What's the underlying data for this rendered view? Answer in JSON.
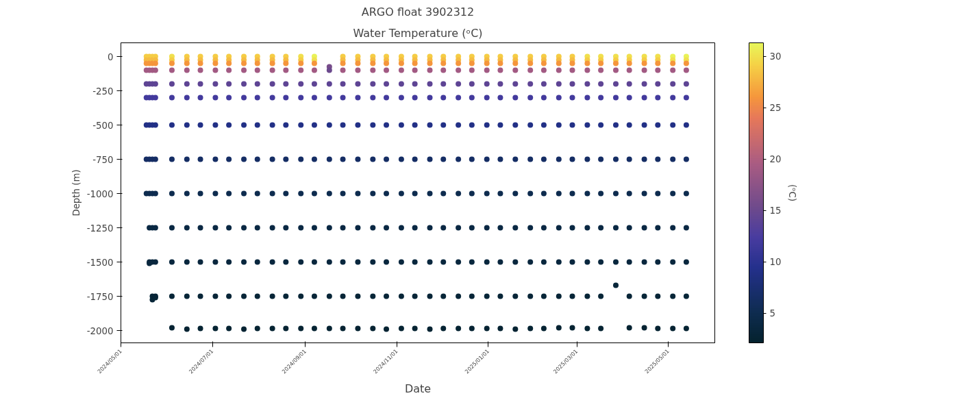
{
  "chart_data": {
    "type": "scatter",
    "title": "ARGO float 3902312",
    "subtitle": "Water Temperature (ᵒC)",
    "xlabel": "Date",
    "ylabel": "Depth (m)",
    "clabel": "(ᵒC)",
    "marker": "circle",
    "xlim": [
      "2024-05-01",
      "2025-06-01"
    ],
    "ylim": [
      -2090,
      100
    ],
    "xticks": [
      {
        "value": "2024-05-01",
        "label": "2024/05/01"
      },
      {
        "value": "2024-07-01",
        "label": "2024/07/01"
      },
      {
        "value": "2024-09-01",
        "label": "2024/09/01"
      },
      {
        "value": "2024-11-01",
        "label": "2024/11/01"
      },
      {
        "value": "2025-01-01",
        "label": "2025/01/01"
      },
      {
        "value": "2025-03-01",
        "label": "2025/03/01"
      },
      {
        "value": "2025-05-01",
        "label": "2025/05/01"
      }
    ],
    "yticks": [
      0,
      -250,
      -500,
      -750,
      -1000,
      -1250,
      -1500,
      -1750,
      -2000
    ],
    "clim": [
      2.1,
      31.3
    ],
    "cticks": [
      5,
      10,
      15,
      20,
      25,
      30
    ],
    "x": [
      "2024-05-18",
      "2024-05-18",
      "2024-05-18",
      "2024-05-18",
      "2024-05-18",
      "2024-05-18",
      "2024-05-18",
      "2024-05-18",
      "2024-05-18",
      "2024-05-20",
      "2024-05-20",
      "2024-05-20",
      "2024-05-20",
      "2024-05-20",
      "2024-05-20",
      "2024-05-20",
      "2024-05-20",
      "2024-05-20",
      "2024-05-20",
      "2024-05-20",
      "2024-05-20",
      "2024-05-22",
      "2024-05-22",
      "2024-05-22",
      "2024-05-22",
      "2024-05-22",
      "2024-05-22",
      "2024-05-22",
      "2024-05-22",
      "2024-05-22",
      "2024-05-22",
      "2024-05-22",
      "2024-05-22",
      "2024-05-22",
      "2024-05-24",
      "2024-05-24",
      "2024-05-24",
      "2024-05-24",
      "2024-05-24",
      "2024-05-24",
      "2024-05-24",
      "2024-05-24",
      "2024-05-24",
      "2024-05-24",
      "2024-05-24",
      "2024-05-24",
      "2024-05-24",
      "2024-06-04",
      "2024-06-04",
      "2024-06-04",
      "2024-06-04",
      "2024-06-04",
      "2024-06-04",
      "2024-06-04",
      "2024-06-04",
      "2024-06-04",
      "2024-06-04",
      "2024-06-04",
      "2024-06-04",
      "2024-06-04",
      "2024-06-14",
      "2024-06-14",
      "2024-06-14",
      "2024-06-14",
      "2024-06-14",
      "2024-06-14",
      "2024-06-14",
      "2024-06-14",
      "2024-06-14",
      "2024-06-14",
      "2024-06-14",
      "2024-06-14",
      "2024-06-14",
      "2024-06-23",
      "2024-06-23",
      "2024-06-23",
      "2024-06-23",
      "2024-06-23",
      "2024-06-23",
      "2024-06-23",
      "2024-06-23",
      "2024-06-23",
      "2024-06-23",
      "2024-06-23",
      "2024-06-23",
      "2024-06-23",
      "2024-07-03",
      "2024-07-03",
      "2024-07-03",
      "2024-07-03",
      "2024-07-03",
      "2024-07-03",
      "2024-07-03",
      "2024-07-03",
      "2024-07-03",
      "2024-07-03",
      "2024-07-03",
      "2024-07-03",
      "2024-07-03",
      "2024-07-12",
      "2024-07-12",
      "2024-07-12",
      "2024-07-12",
      "2024-07-12",
      "2024-07-12",
      "2024-07-12",
      "2024-07-12",
      "2024-07-12",
      "2024-07-12",
      "2024-07-12",
      "2024-07-12",
      "2024-07-12",
      "2024-07-22",
      "2024-07-22",
      "2024-07-22",
      "2024-07-22",
      "2024-07-22",
      "2024-07-22",
      "2024-07-22",
      "2024-07-22",
      "2024-07-22",
      "2024-07-22",
      "2024-07-22",
      "2024-07-22",
      "2024-07-22",
      "2024-07-31",
      "2024-07-31",
      "2024-07-31",
      "2024-07-31",
      "2024-07-31",
      "2024-07-31",
      "2024-07-31",
      "2024-07-31",
      "2024-07-31",
      "2024-07-31",
      "2024-07-31",
      "2024-07-31",
      "2024-07-31",
      "2024-08-10",
      "2024-08-10",
      "2024-08-10",
      "2024-08-10",
      "2024-08-10",
      "2024-08-10",
      "2024-08-10",
      "2024-08-10",
      "2024-08-10",
      "2024-08-10",
      "2024-08-10",
      "2024-08-10",
      "2024-08-10",
      "2024-08-19",
      "2024-08-19",
      "2024-08-19",
      "2024-08-19",
      "2024-08-19",
      "2024-08-19",
      "2024-08-19",
      "2024-08-19",
      "2024-08-19",
      "2024-08-19",
      "2024-08-19",
      "2024-08-19",
      "2024-08-19",
      "2024-08-29",
      "2024-08-29",
      "2024-08-29",
      "2024-08-29",
      "2024-08-29",
      "2024-08-29",
      "2024-08-29",
      "2024-08-29",
      "2024-08-29",
      "2024-08-29",
      "2024-08-29",
      "2024-08-29",
      "2024-08-29",
      "2024-09-07",
      "2024-09-07",
      "2024-09-07",
      "2024-09-07",
      "2024-09-07",
      "2024-09-07",
      "2024-09-07",
      "2024-09-07",
      "2024-09-07",
      "2024-09-07",
      "2024-09-07",
      "2024-09-07",
      "2024-09-07",
      "2024-09-17",
      "2024-09-17",
      "2024-09-17",
      "2024-09-17",
      "2024-09-17",
      "2024-09-17",
      "2024-09-17",
      "2024-09-17",
      "2024-09-17",
      "2024-09-17",
      "2024-09-17",
      "2024-09-26",
      "2024-09-26",
      "2024-09-26",
      "2024-09-26",
      "2024-09-26",
      "2024-09-26",
      "2024-09-26",
      "2024-09-26",
      "2024-09-26",
      "2024-09-26",
      "2024-09-26",
      "2024-09-26",
      "2024-09-26",
      "2024-10-06",
      "2024-10-06",
      "2024-10-06",
      "2024-10-06",
      "2024-10-06",
      "2024-10-06",
      "2024-10-06",
      "2024-10-06",
      "2024-10-06",
      "2024-10-06",
      "2024-10-06",
      "2024-10-06",
      "2024-10-06",
      "2024-10-16",
      "2024-10-16",
      "2024-10-16",
      "2024-10-16",
      "2024-10-16",
      "2024-10-16",
      "2024-10-16",
      "2024-10-16",
      "2024-10-16",
      "2024-10-16",
      "2024-10-16",
      "2024-10-16",
      "2024-10-16",
      "2024-10-25",
      "2024-10-25",
      "2024-10-25",
      "2024-10-25",
      "2024-10-25",
      "2024-10-25",
      "2024-10-25",
      "2024-10-25",
      "2024-10-25",
      "2024-10-25",
      "2024-10-25",
      "2024-10-25",
      "2024-10-25",
      "2024-11-04",
      "2024-11-04",
      "2024-11-04",
      "2024-11-04",
      "2024-11-04",
      "2024-11-04",
      "2024-11-04",
      "2024-11-04",
      "2024-11-04",
      "2024-11-04",
      "2024-11-04",
      "2024-11-04",
      "2024-11-04",
      "2024-11-13",
      "2024-11-13",
      "2024-11-13",
      "2024-11-13",
      "2024-11-13",
      "2024-11-13",
      "2024-11-13",
      "2024-11-13",
      "2024-11-13",
      "2024-11-13",
      "2024-11-13",
      "2024-11-13",
      "2024-11-13",
      "2024-11-23",
      "2024-11-23",
      "2024-11-23",
      "2024-11-23",
      "2024-11-23",
      "2024-11-23",
      "2024-11-23",
      "2024-11-23",
      "2024-11-23",
      "2024-11-23",
      "2024-11-23",
      "2024-11-23",
      "2024-11-23",
      "2024-12-02",
      "2024-12-02",
      "2024-12-02",
      "2024-12-02",
      "2024-12-02",
      "2024-12-02",
      "2024-12-02",
      "2024-12-02",
      "2024-12-02",
      "2024-12-02",
      "2024-12-02",
      "2024-12-02",
      "2024-12-02",
      "2024-12-12",
      "2024-12-12",
      "2024-12-12",
      "2024-12-12",
      "2024-12-12",
      "2024-12-12",
      "2024-12-12",
      "2024-12-12",
      "2024-12-12",
      "2024-12-12",
      "2024-12-12",
      "2024-12-12",
      "2024-12-12",
      "2024-12-21",
      "2024-12-21",
      "2024-12-21",
      "2024-12-21",
      "2024-12-21",
      "2024-12-21",
      "2024-12-21",
      "2024-12-21",
      "2024-12-21",
      "2024-12-21",
      "2024-12-21",
      "2024-12-21",
      "2024-12-21",
      "2024-12-31",
      "2024-12-31",
      "2024-12-31",
      "2024-12-31",
      "2024-12-31",
      "2024-12-31",
      "2024-12-31",
      "2024-12-31",
      "2024-12-31",
      "2024-12-31",
      "2024-12-31",
      "2024-12-31",
      "2024-12-31",
      "2025-01-09",
      "2025-01-09",
      "2025-01-09",
      "2025-01-09",
      "2025-01-09",
      "2025-01-09",
      "2025-01-09",
      "2025-01-09",
      "2025-01-09",
      "2025-01-09",
      "2025-01-09",
      "2025-01-09",
      "2025-01-09",
      "2025-01-19",
      "2025-01-19",
      "2025-01-19",
      "2025-01-19",
      "2025-01-19",
      "2025-01-19",
      "2025-01-19",
      "2025-01-19",
      "2025-01-19",
      "2025-01-19",
      "2025-01-19",
      "2025-01-19",
      "2025-01-19",
      "2025-01-29",
      "2025-01-29",
      "2025-01-29",
      "2025-01-29",
      "2025-01-29",
      "2025-01-29",
      "2025-01-29",
      "2025-01-29",
      "2025-01-29",
      "2025-01-29",
      "2025-01-29",
      "2025-01-29",
      "2025-01-29",
      "2025-02-07",
      "2025-02-07",
      "2025-02-07",
      "2025-02-07",
      "2025-02-07",
      "2025-02-07",
      "2025-02-07",
      "2025-02-07",
      "2025-02-07",
      "2025-02-07",
      "2025-02-07",
      "2025-02-07",
      "2025-02-07",
      "2025-02-17",
      "2025-02-17",
      "2025-02-17",
      "2025-02-17",
      "2025-02-17",
      "2025-02-17",
      "2025-02-17",
      "2025-02-17",
      "2025-02-17",
      "2025-02-17",
      "2025-02-17",
      "2025-02-17",
      "2025-02-17",
      "2025-02-26",
      "2025-02-26",
      "2025-02-26",
      "2025-02-26",
      "2025-02-26",
      "2025-02-26",
      "2025-02-26",
      "2025-02-26",
      "2025-02-26",
      "2025-02-26",
      "2025-02-26",
      "2025-02-26",
      "2025-02-26",
      "2025-03-08",
      "2025-03-08",
      "2025-03-08",
      "2025-03-08",
      "2025-03-08",
      "2025-03-08",
      "2025-03-08",
      "2025-03-08",
      "2025-03-08",
      "2025-03-08",
      "2025-03-08",
      "2025-03-08",
      "2025-03-08",
      "2025-03-17",
      "2025-03-17",
      "2025-03-17",
      "2025-03-17",
      "2025-03-17",
      "2025-03-17",
      "2025-03-17",
      "2025-03-17",
      "2025-03-17",
      "2025-03-17",
      "2025-03-17",
      "2025-03-17",
      "2025-03-17",
      "2025-03-27",
      "2025-03-27",
      "2025-03-27",
      "2025-03-27",
      "2025-03-27",
      "2025-03-27",
      "2025-03-27",
      "2025-03-27",
      "2025-03-27",
      "2025-03-27",
      "2025-03-27",
      "2025-03-27",
      "2025-04-05",
      "2025-04-05",
      "2025-04-05",
      "2025-04-05",
      "2025-04-05",
      "2025-04-05",
      "2025-04-05",
      "2025-04-05",
      "2025-04-05",
      "2025-04-05",
      "2025-04-05",
      "2025-04-05",
      "2025-04-05",
      "2025-04-15",
      "2025-04-15",
      "2025-04-15",
      "2025-04-15",
      "2025-04-15",
      "2025-04-15",
      "2025-04-15",
      "2025-04-15",
      "2025-04-15",
      "2025-04-15",
      "2025-04-15",
      "2025-04-15",
      "2025-04-15",
      "2025-04-24",
      "2025-04-24",
      "2025-04-24",
      "2025-04-24",
      "2025-04-24",
      "2025-04-24",
      "2025-04-24",
      "2025-04-24",
      "2025-04-24",
      "2025-04-24",
      "2025-04-24",
      "2025-04-24",
      "2025-04-24",
      "2025-05-04",
      "2025-05-04",
      "2025-05-04",
      "2025-05-04",
      "2025-05-04",
      "2025-05-04",
      "2025-05-04",
      "2025-05-04",
      "2025-05-04",
      "2025-05-04",
      "2025-05-04",
      "2025-05-04",
      "2025-05-04",
      "2025-05-13",
      "2025-05-13",
      "2025-05-13",
      "2025-05-13",
      "2025-05-13",
      "2025-05-13",
      "2025-05-13",
      "2025-05-13",
      "2025-05-13",
      "2025-05-13",
      "2025-05-13",
      "2025-05-13",
      "2025-05-13"
    ],
    "values": [
      0,
      -25,
      -50,
      -100,
      -200,
      -300,
      -500,
      -750,
      -1000,
      0,
      -25,
      -50,
      -100,
      -200,
      -300,
      -500,
      -750,
      -1000,
      -1250,
      -1500,
      -1510,
      0,
      -25,
      -50,
      -100,
      -200,
      -300,
      -500,
      -750,
      -1000,
      -1250,
      -1500,
      -1750,
      -1775,
      0,
      -25,
      -50,
      -100,
      -200,
      -300,
      -500,
      -750,
      -1000,
      -1250,
      -1500,
      -1750,
      -1760,
      0,
      -25,
      -50,
      -100,
      -200,
      -300,
      -500,
      -750,
      -1000,
      -1250,
      -1500,
      -1750,
      -1980,
      0,
      -25,
      -50,
      -100,
      -200,
      -300,
      -500,
      -750,
      -1000,
      -1250,
      -1500,
      -1750,
      -1990,
      0,
      -25,
      -50,
      -100,
      -200,
      -300,
      -500,
      -750,
      -1000,
      -1250,
      -1500,
      -1750,
      -1985,
      0,
      -25,
      -50,
      -100,
      -200,
      -300,
      -500,
      -750,
      -1000,
      -1250,
      -1500,
      -1750,
      -1985,
      0,
      -25,
      -50,
      -100,
      -200,
      -300,
      -500,
      -750,
      -1000,
      -1250,
      -1500,
      -1750,
      -1985,
      0,
      -25,
      -50,
      -100,
      -200,
      -300,
      -500,
      -750,
      -1000,
      -1250,
      -1500,
      -1750,
      -1990,
      0,
      -25,
      -50,
      -100,
      -200,
      -300,
      -500,
      -750,
      -1000,
      -1250,
      -1500,
      -1750,
      -1985,
      0,
      -25,
      -50,
      -100,
      -200,
      -300,
      -500,
      -750,
      -1000,
      -1250,
      -1500,
      -1750,
      -1985,
      0,
      -25,
      -50,
      -100,
      -200,
      -300,
      -500,
      -750,
      -1000,
      -1250,
      -1500,
      -1750,
      -1985,
      0,
      -25,
      -50,
      -100,
      -200,
      -300,
      -500,
      -750,
      -1000,
      -1250,
      -1500,
      -1750,
      -1985,
      0,
      -25,
      -50,
      -100,
      -200,
      -300,
      -500,
      -750,
      -1000,
      -1250,
      -1500,
      -1750,
      -1985,
      -75,
      -100,
      -200,
      -300,
      -500,
      -750,
      -1000,
      -1250,
      -1500,
      -1750,
      -1985,
      0,
      -25,
      -50,
      -100,
      -200,
      -300,
      -500,
      -750,
      -1000,
      -1250,
      -1500,
      -1750,
      -1985,
      0,
      -25,
      -50,
      -100,
      -200,
      -300,
      -500,
      -750,
      -1000,
      -1250,
      -1500,
      -1750,
      -1985,
      0,
      -25,
      -50,
      -100,
      -200,
      -300,
      -500,
      -750,
      -1000,
      -1250,
      -1500,
      -1750,
      -1985,
      0,
      -25,
      -50,
      -100,
      -200,
      -300,
      -500,
      -750,
      -1000,
      -1250,
      -1500,
      -1750,
      -1990,
      0,
      -25,
      -50,
      -100,
      -200,
      -300,
      -500,
      -750,
      -1000,
      -1250,
      -1500,
      -1750,
      -1985,
      0,
      -25,
      -50,
      -100,
      -200,
      -300,
      -500,
      -750,
      -1000,
      -1250,
      -1500,
      -1750,
      -1985,
      0,
      -25,
      -50,
      -100,
      -200,
      -300,
      -500,
      -750,
      -1000,
      -1250,
      -1500,
      -1750,
      -1990,
      0,
      -25,
      -50,
      -100,
      -200,
      -300,
      -500,
      -750,
      -1000,
      -1250,
      -1500,
      -1750,
      -1985,
      0,
      -25,
      -50,
      -100,
      -200,
      -300,
      -500,
      -750,
      -1000,
      -1250,
      -1500,
      -1750,
      -1985,
      0,
      -25,
      -50,
      -100,
      -200,
      -300,
      -500,
      -750,
      -1000,
      -1250,
      -1500,
      -1750,
      -1985,
      0,
      -25,
      -50,
      -100,
      -200,
      -300,
      -500,
      -750,
      -1000,
      -1250,
      -1500,
      -1750,
      -1985,
      0,
      -25,
      -50,
      -100,
      -200,
      -300,
      -500,
      -750,
      -1000,
      -1250,
      -1500,
      -1750,
      -1985,
      0,
      -25,
      -50,
      -100,
      -200,
      -300,
      -500,
      -750,
      -1000,
      -1250,
      -1500,
      -1750,
      -1990,
      0,
      -25,
      -50,
      -100,
      -200,
      -300,
      -500,
      -750,
      -1000,
      -1250,
      -1500,
      -1750,
      -1985,
      0,
      -25,
      -50,
      -100,
      -200,
      -300,
      -500,
      -750,
      -1000,
      -1250,
      -1500,
      -1750,
      -1985,
      0,
      -25,
      -50,
      -100,
      -200,
      -300,
      -500,
      -750,
      -1000,
      -1250,
      -1500,
      -1750,
      -1980,
      0,
      -25,
      -50,
      -100,
      -200,
      -300,
      -500,
      -750,
      -1000,
      -1250,
      -1500,
      -1750,
      -1980,
      0,
      -25,
      -50,
      -100,
      -200,
      -300,
      -500,
      -750,
      -1000,
      -1250,
      -1500,
      -1750,
      -1985,
      0,
      -25,
      -50,
      -100,
      -200,
      -300,
      -500,
      -750,
      -1000,
      -1250,
      -1500,
      -1750,
      -1985,
      0,
      -25,
      -50,
      -100,
      -200,
      -300,
      -500,
      -750,
      -1000,
      -1250,
      -1500,
      -1670,
      0,
      -25,
      -50,
      -100,
      -200,
      -300,
      -500,
      -750,
      -1000,
      -1250,
      -1500,
      -1750,
      -1980,
      0,
      -25,
      -50,
      -100,
      -200,
      -300,
      -500,
      -750,
      -1000,
      -1250,
      -1500,
      -1750,
      -1980,
      0,
      -25,
      -50,
      -100,
      -200,
      -300,
      -500,
      -750,
      -1000,
      -1250,
      -1500,
      -1750,
      -1985,
      0,
      -25,
      -50,
      -100,
      -200,
      -300,
      -500,
      -750,
      -1000,
      -1250,
      -1500,
      -1750,
      -1985,
      0,
      -25,
      -50,
      -100,
      -200,
      -300,
      -500,
      -750,
      -1000,
      -1250,
      -1500,
      -1750,
      -1985
    ],
    "cvalues": [
      29,
      28,
      26,
      19,
      14,
      12,
      9,
      6.5,
      5,
      29,
      28,
      26,
      19,
      14,
      12,
      9,
      6.5,
      5,
      4,
      3.5,
      3.5,
      29,
      28,
      26,
      19,
      14,
      12,
      9,
      6.5,
      5,
      4,
      3.5,
      3,
      3,
      29,
      28,
      26,
      19,
      14,
      12,
      9,
      6.5,
      5,
      4,
      3.5,
      3,
      3,
      30,
      29,
      26,
      19,
      14,
      12,
      9,
      6.5,
      5,
      4,
      3.5,
      3,
      2.5,
      29,
      28,
      26,
      19,
      14,
      12,
      9,
      6.5,
      5,
      4,
      3.5,
      3,
      2.5,
      29,
      28,
      26,
      19,
      14,
      12,
      9,
      6.5,
      5,
      4,
      3.5,
      3,
      2.5,
      29,
      28,
      26,
      19,
      14,
      12,
      9,
      6.5,
      5,
      4,
      3.5,
      3,
      2.5,
      29,
      28,
      26,
      19,
      14,
      12,
      9,
      6.5,
      5,
      4,
      3.5,
      3,
      2.5,
      29,
      28,
      26,
      19,
      14,
      12,
      9,
      6.5,
      5,
      4,
      3.5,
      3,
      2.5,
      29,
      28,
      26,
      19,
      14,
      12,
      9,
      6.5,
      5,
      4,
      3.5,
      3,
      2.5,
      29,
      28,
      26,
      19,
      14,
      12,
      9,
      6.5,
      5,
      4,
      3.5,
      3,
      2.5,
      29,
      28,
      26,
      19,
      14,
      12,
      9,
      6.5,
      5,
      4,
      3.5,
      3,
      2.5,
      30,
      29,
      26,
      19,
      14,
      12,
      9,
      6.5,
      5,
      4,
      3.5,
      3,
      2.5,
      31,
      30,
      26,
      19,
      14,
      12,
      9,
      6.5,
      5,
      4,
      3.5,
      3,
      2.5,
      16,
      15,
      14,
      12,
      9,
      6.5,
      5,
      4,
      3.5,
      3,
      2.5,
      29,
      28,
      26,
      19,
      14,
      12,
      9,
      6.5,
      5,
      4,
      3.5,
      3,
      2.5,
      29,
      28,
      26,
      19,
      14,
      12,
      9,
      6.5,
      5,
      4,
      3.5,
      3,
      2.5,
      29,
      28,
      26,
      19,
      14,
      12,
      9,
      6.5,
      5,
      4,
      3.5,
      3,
      2.5,
      29,
      28,
      26,
      19,
      14,
      12,
      9,
      6.5,
      5,
      4,
      3.5,
      3,
      2.5,
      29,
      28,
      26,
      19,
      14,
      12,
      9,
      6.5,
      5,
      4,
      3.5,
      3,
      2.5,
      29,
      28,
      26,
      19,
      14,
      12,
      9,
      6.5,
      5,
      4,
      3.5,
      3,
      2.5,
      29,
      28,
      26,
      19,
      14,
      12,
      9,
      6.5,
      5,
      4,
      3.5,
      3,
      2.5,
      29,
      28,
      26,
      19,
      14,
      12,
      9,
      6.5,
      5,
      4,
      3.5,
      3,
      2.5,
      29,
      28,
      26,
      19,
      14,
      12,
      9,
      6.5,
      5,
      4,
      3.5,
      3,
      2.5,
      29,
      28,
      26,
      19,
      14,
      12,
      9,
      6.5,
      5,
      4,
      3.5,
      3,
      2.5,
      29,
      28,
      26,
      19,
      14,
      12,
      9,
      6.5,
      5,
      4,
      3.5,
      3,
      2.5,
      29,
      28,
      26,
      19,
      14,
      12,
      9,
      6.5,
      5,
      4,
      3.5,
      3,
      2.5,
      29,
      28,
      26,
      19,
      14,
      12,
      9,
      6.5,
      5,
      4,
      3.5,
      3,
      2.5,
      29,
      28,
      26,
      19,
      14,
      12,
      9,
      6.5,
      5,
      4,
      3.5,
      3,
      2.5,
      29,
      28,
      26,
      19,
      14,
      12,
      9,
      6.5,
      5,
      4,
      3.5,
      3,
      2.5,
      29,
      28,
      26,
      19,
      14,
      12,
      9,
      6.5,
      5,
      4,
      3.5,
      3,
      2.5,
      29,
      28,
      26,
      19,
      14,
      12,
      9,
      6.5,
      5,
      4,
      3.5,
      3,
      2.5,
      30,
      29,
      26,
      19,
      14,
      12,
      9,
      6.5,
      5,
      4,
      3.5,
      3,
      2.5,
      30,
      29,
      26,
      19,
      14,
      12,
      9,
      6.5,
      5,
      4,
      3.5,
      3,
      2.5,
      30,
      29,
      26,
      19,
      14,
      12,
      9,
      6.5,
      5,
      4,
      3.5,
      3.2,
      30,
      29,
      26,
      19,
      14,
      12,
      9,
      6.5,
      5,
      4,
      3.5,
      3,
      2.5,
      30,
      29,
      26,
      19,
      14,
      12,
      9,
      6.5,
      5,
      4,
      3.5,
      3,
      2.5,
      30,
      29,
      26,
      19,
      14,
      12,
      9,
      6.5,
      5,
      4,
      3.5,
      3,
      2.5,
      31,
      30,
      26,
      19,
      14,
      12,
      9,
      6.5,
      5,
      4,
      3.5,
      3,
      2.5,
      31,
      30,
      26,
      19,
      14,
      12,
      9,
      6.5,
      5,
      4,
      3.5,
      3,
      2.5
    ]
  }
}
